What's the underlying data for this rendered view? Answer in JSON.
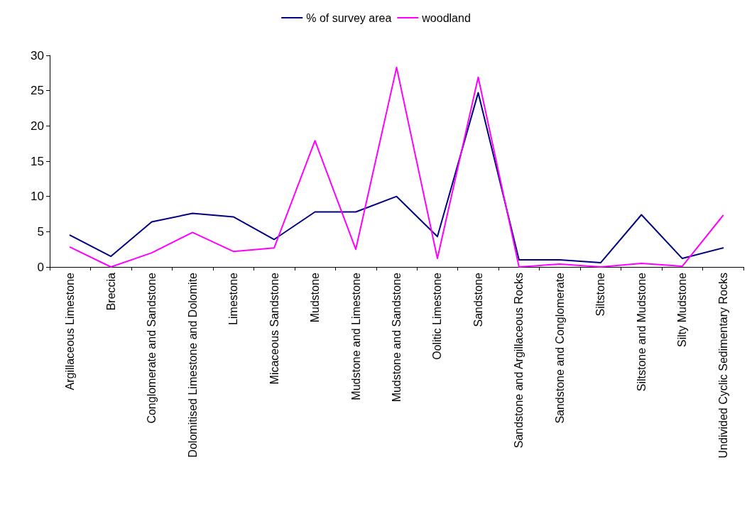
{
  "chart_data": {
    "type": "line",
    "categories": [
      "Argillaceous Limestone",
      "Breccia",
      "Conglomerate and Sandstone",
      "Dolomitised Limestone and Dolomite",
      "Limestone",
      "Micaceous Sandstone",
      "Mudstone",
      "Mudstone and Limestone",
      "Mudstone and Sandstone",
      "Oolitic Limestone",
      "Sandstone",
      "Sandstone and Argillaceous Rocks",
      "Sandstone and Conglomerate",
      "Siltstone",
      "Siltstone and Mudstone",
      "Silty Mudstone",
      "Undivided Cyclic Sedimentary Rocks"
    ],
    "series": [
      {
        "name": "% of survey area",
        "color": "#000080",
        "values": [
          4.5,
          1.5,
          6.4,
          7.6,
          7.1,
          3.9,
          7.8,
          7.8,
          10.0,
          4.3,
          24.7,
          1.0,
          1.0,
          0.6,
          7.4,
          1.2,
          2.7
        ]
      },
      {
        "name": "woodland",
        "color": "#ff00ff",
        "values": [
          2.8,
          0,
          2.0,
          4.9,
          2.2,
          2.7,
          17.9,
          2.5,
          28.3,
          1.2,
          26.9,
          0,
          0.4,
          0,
          0.5,
          0.1,
          7.3
        ]
      }
    ],
    "ylim": [
      0,
      30
    ],
    "yticks": [
      0,
      5,
      10,
      15,
      20,
      25,
      30
    ],
    "grid": false,
    "legend": "top",
    "marker": "none",
    "line_style": "solid"
  }
}
